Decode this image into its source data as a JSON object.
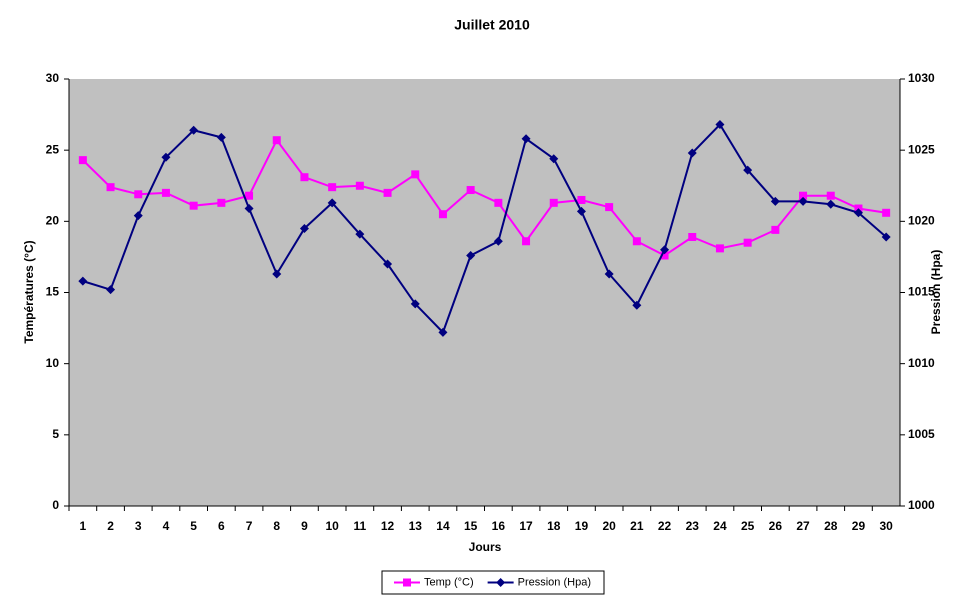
{
  "chart_data": {
    "type": "line",
    "title": "Juillet 2010",
    "x_label": "Jours",
    "y_label": "Températures (°C)",
    "y2_label": "Pression (Hpa)",
    "categories": [
      "1",
      "2",
      "3",
      "4",
      "5",
      "6",
      "7",
      "8",
      "9",
      "10",
      "11",
      "12",
      "13",
      "14",
      "15",
      "16",
      "17",
      "18",
      "19",
      "20",
      "21",
      "22",
      "23",
      "24",
      "25",
      "26",
      "27",
      "28",
      "29",
      "30"
    ],
    "series": [
      {
        "name": "Temp (°C)",
        "color": "#ff00ff",
        "marker": "square",
        "values": [
          24.3,
          22.4,
          21.9,
          22.0,
          21.1,
          21.3,
          21.8,
          25.7,
          23.1,
          22.4,
          22.5,
          22.0,
          23.3,
          20.5,
          22.2,
          21.3,
          18.6,
          21.3,
          21.5,
          21.0,
          18.6,
          17.6,
          18.9,
          18.1,
          18.5,
          19.4,
          21.8,
          21.8,
          20.9,
          20.6
        ]
      },
      {
        "name": "Pression (Hpa)",
        "color": "#000080",
        "marker": "diamond",
        "axis": "y2",
        "values": [
          1015.8,
          1015.2,
          1020.4,
          1024.5,
          1026.4,
          1025.9,
          1020.9,
          1016.3,
          1019.5,
          1021.3,
          1019.1,
          1017.0,
          1014.2,
          1012.2,
          1017.6,
          1018.6,
          1025.8,
          1024.4,
          1020.7,
          1016.3,
          1014.1,
          1018.0,
          1024.8,
          1026.8,
          1023.6,
          1021.4,
          1021.4,
          1021.2,
          1020.6,
          1018.9
        ]
      }
    ],
    "ylim": [
      0,
      30
    ],
    "yticks": [
      0,
      5,
      10,
      15,
      20,
      25,
      30
    ],
    "y2lim": [
      1000,
      1030
    ],
    "y2ticks": [
      1000,
      1005,
      1010,
      1015,
      1020,
      1025,
      1030
    ],
    "background": "#c0c0c0",
    "legend": "bottom"
  }
}
